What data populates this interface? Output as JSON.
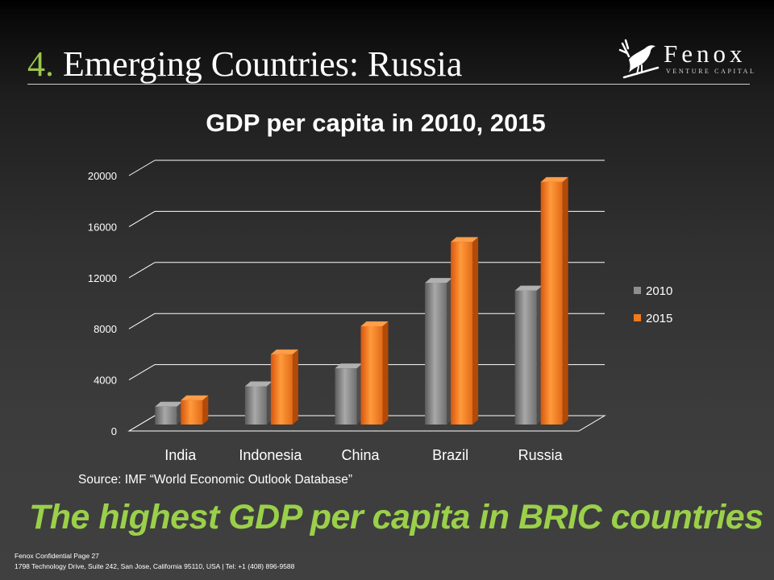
{
  "slide": {
    "title_number": "4.",
    "title_text": "Emerging Countries: Russia",
    "source": "Source: IMF “World Economic Outlook Database”",
    "tagline": "The highest GDP per capita in BRIC countries",
    "footer_line1": "Fenox Confidential Page 27",
    "footer_line2": "1798 Technology Drive, Suite 242, San Jose, California 95110, USA | Tel: +1 (408) 896-9588"
  },
  "logo": {
    "name": "Fenox",
    "subtitle": "VENTURE CAPITAL",
    "icon": "bird-on-branch-icon"
  },
  "chart_data": {
    "type": "bar",
    "title": "GDP per capita in 2010, 2015",
    "xlabel": "",
    "ylabel": "",
    "categories": [
      "India",
      "Indonesia",
      "China",
      "Brazil",
      "Russia"
    ],
    "series": [
      {
        "name": "2010",
        "values": [
          1400,
          3000,
          4400,
          11100,
          10500
        ],
        "color": "#8e8e8e"
      },
      {
        "name": "2015",
        "values": [
          1900,
          5500,
          7700,
          14300,
          19000
        ],
        "color": "#f07a1c"
      }
    ],
    "ylim": [
      0,
      20000
    ],
    "yticks": [
      "0",
      "4000",
      "8000",
      "12000",
      "16000",
      "20000"
    ],
    "grid": true,
    "legend": "right",
    "style": "3d-columns"
  }
}
